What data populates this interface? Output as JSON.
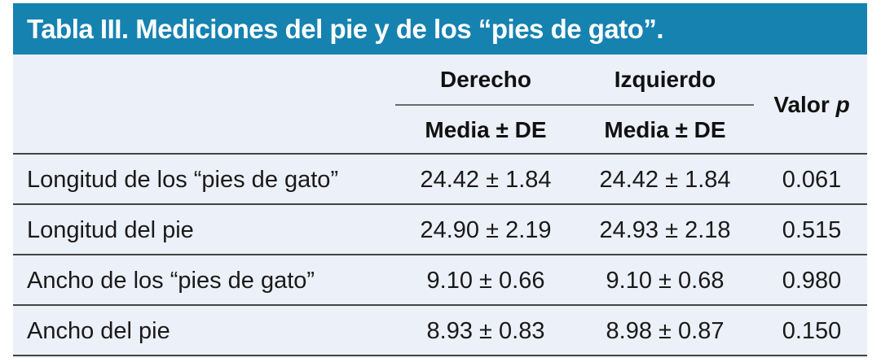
{
  "title": "Tabla III. Mediciones del pie y de los “pies de gato”.",
  "header": {
    "group_right": "Derecho",
    "group_left": "Izquierdo",
    "sub_right": "Media ± DE",
    "sub_left": "Media ± DE",
    "p_label": "Valor",
    "p_symbol": "p"
  },
  "rows": [
    {
      "label": "Longitud de los “pies de gato”",
      "derecho": "24.42 ± 1.84",
      "izquierdo": "24.42 ± 1.84",
      "p": "0.061"
    },
    {
      "label": "Longitud del pie",
      "derecho": "24.90 ± 2.19",
      "izquierdo": "24.93 ± 2.18",
      "p": "0.515"
    },
    {
      "label": "Ancho de los “pies de gato”",
      "derecho": "9.10 ± 0.66",
      "izquierdo": "9.10 ± 0.68",
      "p": "0.980"
    },
    {
      "label": "Ancho del pie",
      "derecho": "8.93 ± 0.83",
      "izquierdo": "8.98 ± 0.87",
      "p": "0.150"
    }
  ],
  "colors": {
    "title_bar": "#1682B0",
    "table_bg": "#ECF0F8"
  }
}
